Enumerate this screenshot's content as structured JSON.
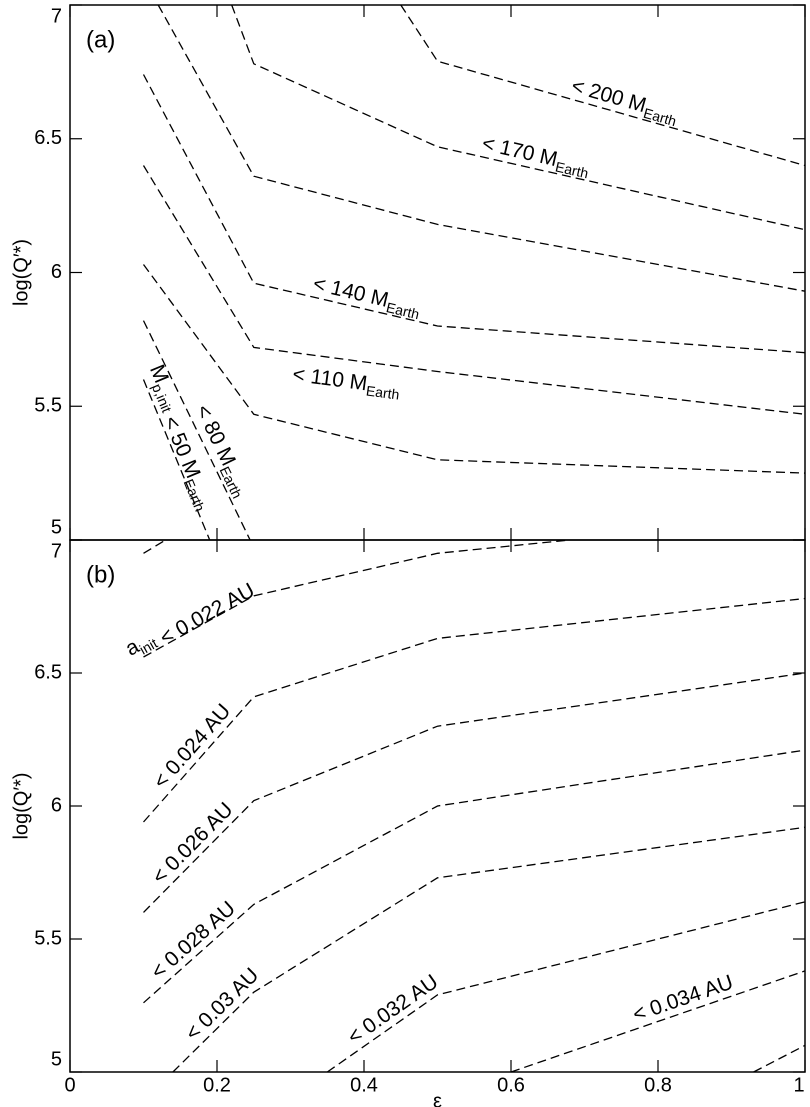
{
  "chart_data": [
    {
      "type": "line",
      "panel_label": "(a)",
      "ylabel": "log(Q′*)",
      "xlim": [
        0,
        1
      ],
      "ylim": [
        5,
        7
      ],
      "yticks": [
        5,
        5.5,
        6,
        6.5,
        7
      ],
      "series": [
        {
          "color": "#000000",
          "label": [
            {
              "text": "< 200 M"
            },
            {
              "sub": "Earth"
            }
          ],
          "x": [
            0.45,
            0.5,
            1
          ],
          "values": [
            7,
            6.79,
            6.4
          ]
        },
        {
          "color": "#000000",
          "label": [
            {
              "text": "< 170 M"
            },
            {
              "sub": "Earth"
            }
          ],
          "x": [
            0.22,
            0.25,
            0.5,
            1
          ],
          "values": [
            7,
            6.78,
            6.47,
            6.16
          ]
        },
        {
          "color": "#000000",
          "x": [
            0.12,
            0.25,
            0.5,
            1
          ],
          "values": [
            7,
            6.36,
            6.18,
            5.93
          ]
        },
        {
          "color": "#000000",
          "label": [
            {
              "text": "< 140 M"
            },
            {
              "sub": "Earth"
            }
          ],
          "x": [
            0.1,
            0.25,
            0.5,
            1
          ],
          "values": [
            6.74,
            5.96,
            5.8,
            5.7
          ]
        },
        {
          "color": "#000000",
          "label": [
            {
              "text": "< 110 M"
            },
            {
              "sub": "Earth"
            }
          ],
          "x": [
            0.1,
            0.25,
            0.5,
            1
          ],
          "values": [
            6.4,
            5.72,
            5.63,
            5.47
          ]
        },
        {
          "color": "#000000",
          "x": [
            0.1,
            0.25,
            0.5,
            1
          ],
          "values": [
            6.03,
            5.47,
            5.3,
            5.25
          ]
        },
        {
          "color": "#000000",
          "label": [
            {
              "text": "< 80 M"
            },
            {
              "sub": "Earth"
            }
          ],
          "x": [
            0.1,
            0.245
          ],
          "values": [
            5.82,
            5.0
          ]
        },
        {
          "color": "#000000",
          "label": [
            {
              "text": "M"
            },
            {
              "sub": "p,init"
            },
            {
              "text": " < 50 M"
            },
            {
              "sub": "Earth"
            }
          ],
          "x": [
            0.1,
            0.19
          ],
          "values": [
            5.6,
            5.0
          ]
        }
      ]
    },
    {
      "type": "line",
      "panel_label": "(b)",
      "ylabel": "log(Q′*)",
      "xlabel": "ε",
      "xlim": [
        0,
        1
      ],
      "ylim": [
        5,
        7
      ],
      "xticks": [
        0,
        0.2,
        0.4,
        0.6,
        0.8,
        1
      ],
      "yticks": [
        5,
        5.5,
        6,
        6.5,
        7
      ],
      "series": [
        {
          "color": "#000000",
          "label": [
            {
              "text": "a"
            },
            {
              "sub": "init"
            },
            {
              "text": " < 0.022 AU"
            }
          ],
          "x": [
            0.1,
            0.25,
            0.5,
            0.68
          ],
          "values": [
            6.56,
            6.79,
            6.95,
            7.0
          ]
        },
        {
          "color": "#000000",
          "label": [
            {
              "text": "< 0.024 AU"
            }
          ],
          "x": [
            0.1,
            0.25,
            0.5,
            1
          ],
          "values": [
            5.94,
            6.41,
            6.63,
            6.78
          ]
        },
        {
          "color": "#000000",
          "label": [
            {
              "text": "< 0.026 AU"
            }
          ],
          "x": [
            0.1,
            0.25,
            0.5,
            1
          ],
          "values": [
            5.6,
            6.02,
            6.3,
            6.5
          ]
        },
        {
          "color": "#000000",
          "label": [
            {
              "text": "< 0.028 AU"
            }
          ],
          "x": [
            0.1,
            0.25,
            0.5,
            1
          ],
          "values": [
            5.26,
            5.63,
            6.0,
            6.21
          ]
        },
        {
          "color": "#000000",
          "label": [
            {
              "text": "< 0.03 AU"
            }
          ],
          "x": [
            0.14,
            0.25,
            0.5,
            1
          ],
          "values": [
            5.0,
            5.3,
            5.73,
            5.92
          ]
        },
        {
          "color": "#000000",
          "label": [
            {
              "text": "< 0.032 AU"
            }
          ],
          "x": [
            0.35,
            0.5,
            1
          ],
          "values": [
            5.0,
            5.29,
            5.64
          ]
        },
        {
          "color": "#000000",
          "label": [
            {
              "text": "< 0.034 AU"
            }
          ],
          "x": [
            0.6,
            1
          ],
          "values": [
            5.0,
            5.38
          ]
        },
        {
          "color": "#000000",
          "x": [
            0.1,
            0.13
          ],
          "values": [
            6.95,
            7.0
          ]
        },
        {
          "color": "#000000",
          "x": [
            0.93,
            1
          ],
          "values": [
            5.0,
            5.1
          ]
        }
      ]
    }
  ]
}
